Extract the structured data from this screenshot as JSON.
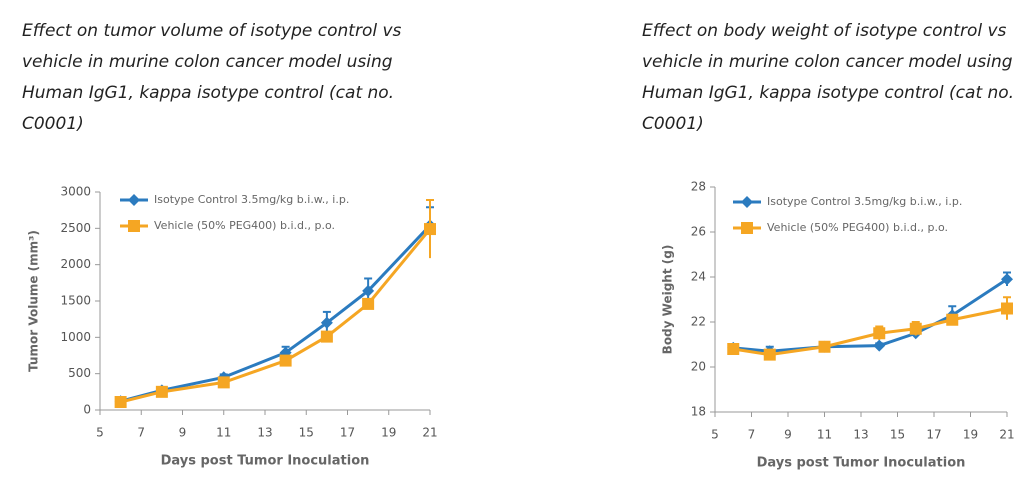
{
  "chart_data": [
    {
      "type": "line",
      "caption": "Effect on tumor volume of isotype control vs vehicle in murine colon cancer model using Human IgG1, kappa isotype control (cat no. C0001)",
      "x_label": "Days post Tumor Inoculation",
      "y_label": "Tumor Volume (mm³)",
      "x": [
        6,
        8,
        11,
        14,
        16,
        18,
        21
      ],
      "xlim": [
        5,
        21
      ],
      "xticks": [
        5,
        7,
        9,
        11,
        13,
        15,
        17,
        19,
        21
      ],
      "ylim": [
        0,
        3000
      ],
      "yticks": [
        0,
        500,
        1000,
        1500,
        2000,
        2500,
        3000
      ],
      "series": [
        {
          "name": "Isotype Control 3.5mg/kg b.i.w., i.p.",
          "color": "#2b7bbf",
          "marker": "diamond",
          "values": [
            120,
            270,
            450,
            790,
            1200,
            1640,
            2540
          ],
          "errors": [
            30,
            30,
            40,
            80,
            150,
            170,
            250
          ]
        },
        {
          "name": "Vehicle (50% PEG400) b.i.d., p.o.",
          "color": "#f5a623",
          "marker": "square",
          "values": [
            110,
            250,
            380,
            680,
            1010,
            1460,
            2490
          ],
          "errors": [
            20,
            30,
            40,
            50,
            50,
            60,
            400
          ]
        }
      ]
    },
    {
      "type": "line",
      "caption": "Effect on body weight of isotype control vs vehicle in murine colon cancer model using Human IgG1, kappa isotype control (cat no. C0001)",
      "x_label": "Days post Tumor Inoculation",
      "y_label": "Body Weight (g)",
      "x": [
        6,
        8,
        11,
        14,
        16,
        18,
        21
      ],
      "xlim": [
        5,
        21
      ],
      "xticks": [
        5,
        7,
        9,
        11,
        13,
        15,
        17,
        19,
        21
      ],
      "ylim": [
        18,
        28
      ],
      "yticks": [
        18,
        20,
        22,
        24,
        26,
        28
      ],
      "series": [
        {
          "name": "Isotype Control 3.5mg/kg b.i.w., i.p.",
          "color": "#2b7bbf",
          "marker": "diamond",
          "values": [
            20.85,
            20.7,
            20.9,
            20.95,
            21.5,
            22.3,
            23.9
          ],
          "errors": [
            0.1,
            0.2,
            0.1,
            0.1,
            0.1,
            0.4,
            0.3
          ]
        },
        {
          "name": "Vehicle (50% PEG400) b.i.d., p.o.",
          "color": "#f5a623",
          "marker": "square",
          "values": [
            20.8,
            20.55,
            20.9,
            21.5,
            21.7,
            22.1,
            22.6
          ],
          "errors": [
            0.1,
            0.1,
            0.1,
            0.3,
            0.3,
            0.2,
            0.5
          ]
        }
      ]
    }
  ]
}
